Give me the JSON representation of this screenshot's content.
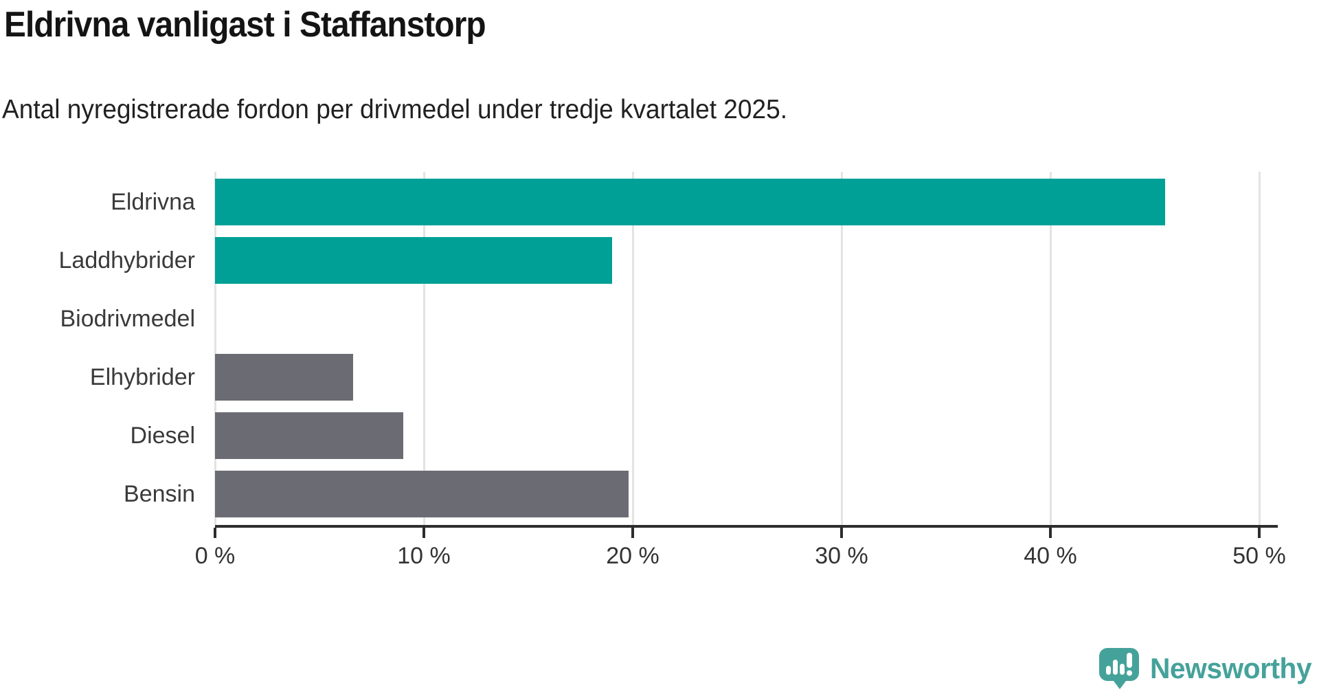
{
  "title": "Eldrivna vanligast i Staffanstorp",
  "subtitle": "Antal nyregistrerade fordon per drivmedel under tredje kvartalet 2025.",
  "chart_data": {
    "type": "bar",
    "orientation": "horizontal",
    "title": "Eldrivna vanligast i Staffanstorp",
    "subtitle": "Antal nyregistrerade fordon per drivmedel under tredje kvartalet 2025.",
    "categories": [
      "Eldrivna",
      "Laddhybrider",
      "Biodrivmedel",
      "Elhybrider",
      "Diesel",
      "Bensin"
    ],
    "values": [
      45.5,
      19.0,
      0,
      6.6,
      9.0,
      19.8
    ],
    "unit": "%",
    "xlim": [
      0,
      50
    ],
    "x_ticks": [
      0,
      10,
      20,
      30,
      40,
      50
    ],
    "x_tick_labels": [
      "0 %",
      "10 %",
      "20 %",
      "30 %",
      "40 %",
      "50 %"
    ],
    "bar_colors": [
      "#00a096",
      "#00a096",
      "#6b6b73",
      "#6b6b73",
      "#6b6b73",
      "#6b6b73"
    ],
    "highlight_color": "#00a096",
    "default_color": "#6b6b73",
    "gridline_color": "#e3e3e3",
    "axis_color": "#2d2d2d",
    "grid": true,
    "legend": false
  },
  "branding": {
    "logo_text": "Newsworthy",
    "logo_color": "#45a29a",
    "logo_icon": "speech-bubble-bar-chart-exclamation"
  }
}
